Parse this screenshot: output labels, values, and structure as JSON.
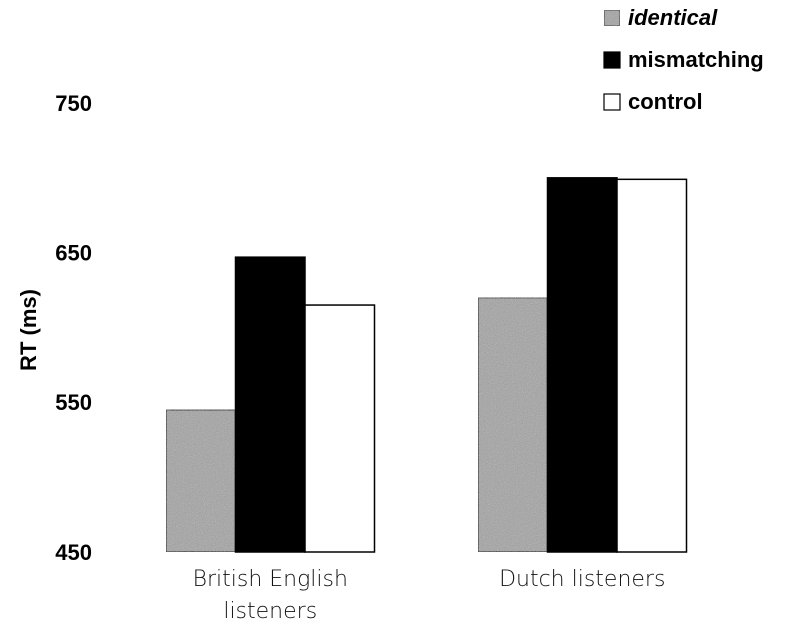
{
  "chart_data": {
    "type": "bar",
    "y_label": "RT (ms)",
    "categories": [
      "British English listeners",
      "Dutch listeners"
    ],
    "series": [
      {
        "name": "identical",
        "color": "#a3a3a3",
        "values": [
          545,
          620
        ]
      },
      {
        "name": "mismatching",
        "color": "#000000",
        "values": [
          647,
          700
        ]
      },
      {
        "name": "control",
        "color": "#ffffff",
        "values": [
          615,
          699
        ]
      }
    ],
    "ylim": [
      450,
      750
    ],
    "yticks": [
      450,
      550,
      650,
      750
    ],
    "grid": false,
    "legend": "top-right"
  }
}
